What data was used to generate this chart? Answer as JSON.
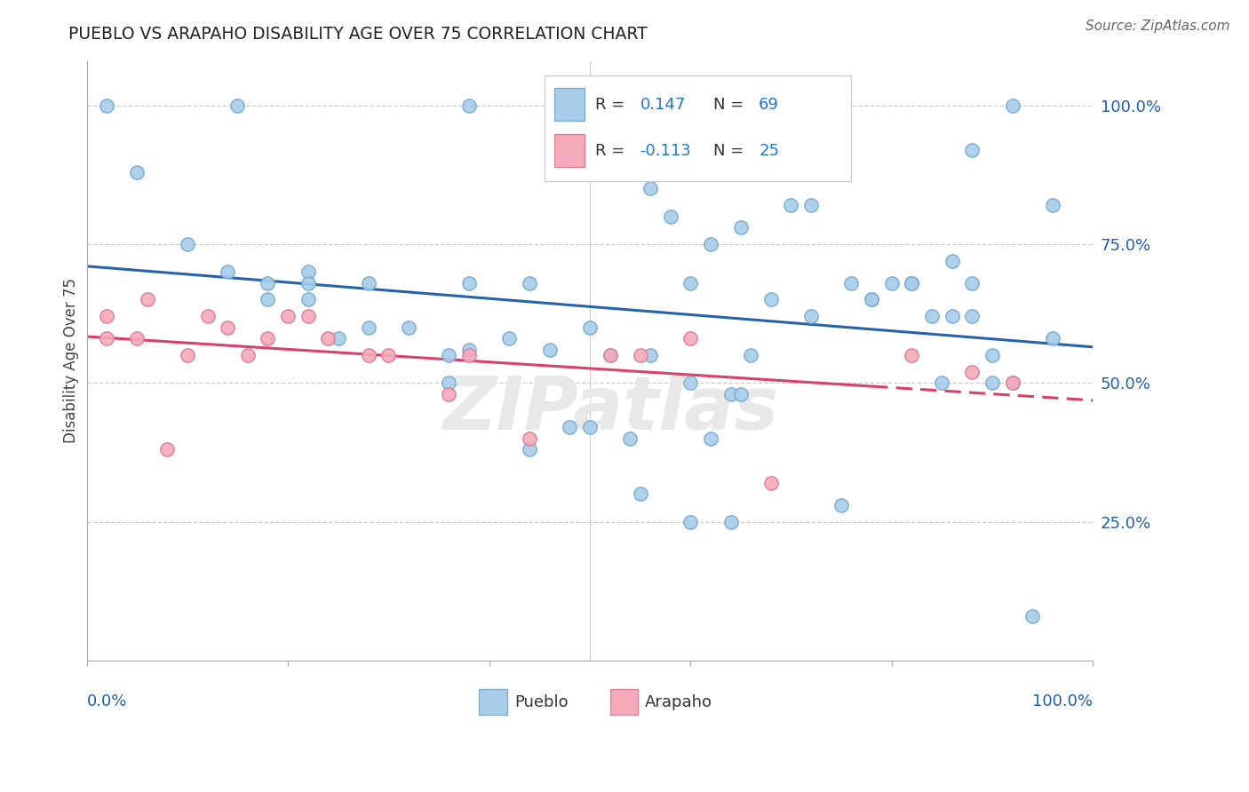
{
  "title": "PUEBLO VS ARAPAHO DISABILITY AGE OVER 75 CORRELATION CHART",
  "source": "Source: ZipAtlas.com",
  "ylabel": "Disability Age Over 75",
  "xlim": [
    0.0,
    1.0
  ],
  "ylim": [
    0.0,
    1.08
  ],
  "ytick_labels": [
    "25.0%",
    "50.0%",
    "75.0%",
    "100.0%"
  ],
  "ytick_values": [
    0.25,
    0.5,
    0.75,
    1.0
  ],
  "pueblo_color": "#A8CCEA",
  "pueblo_edge": "#7AAFD4",
  "arapaho_color": "#F4AABB",
  "arapaho_edge": "#E08098",
  "trend_pueblo_color": "#2563AD",
  "trend_arapaho_color": "#D9406A",
  "watermark_color": "#E0E0E0",
  "legend_R_pueblo": "0.147",
  "legend_N_pueblo": "69",
  "legend_R_arapaho": "-0.113",
  "legend_N_arapaho": "25",
  "pueblo_x": [
    0.02,
    0.15,
    0.05,
    0.22,
    0.22,
    0.38,
    0.44,
    0.47,
    0.38,
    0.42,
    0.56,
    0.58,
    0.62,
    0.7,
    0.72,
    0.76,
    0.82,
    0.82,
    0.88,
    0.92,
    0.96,
    0.1,
    0.14,
    0.18,
    0.18,
    0.22,
    0.25,
    0.28,
    0.28,
    0.32,
    0.36,
    0.36,
    0.38,
    0.46,
    0.6,
    0.65,
    0.66,
    0.72,
    0.78,
    0.8,
    0.84,
    0.86,
    0.88,
    0.56,
    0.64,
    0.55,
    0.6,
    0.64,
    0.75,
    0.78,
    0.85,
    0.9,
    0.9,
    0.96,
    0.5,
    0.54,
    0.62,
    0.68,
    0.5,
    0.52,
    0.6,
    0.65,
    0.82,
    0.86,
    0.88,
    0.92,
    0.94,
    0.48,
    0.44
  ],
  "pueblo_y": [
    1.0,
    1.0,
    0.88,
    0.7,
    0.68,
    0.68,
    0.68,
    1.0,
    1.0,
    0.58,
    0.85,
    0.8,
    0.75,
    0.82,
    0.82,
    0.68,
    0.68,
    0.68,
    0.92,
    1.0,
    0.82,
    0.75,
    0.7,
    0.68,
    0.65,
    0.65,
    0.58,
    0.68,
    0.6,
    0.6,
    0.55,
    0.5,
    0.56,
    0.56,
    0.68,
    0.78,
    0.55,
    0.62,
    0.65,
    0.68,
    0.62,
    0.72,
    0.68,
    0.55,
    0.48,
    0.3,
    0.25,
    0.25,
    0.28,
    0.65,
    0.5,
    0.5,
    0.55,
    0.58,
    0.42,
    0.4,
    0.4,
    0.65,
    0.6,
    0.55,
    0.5,
    0.48,
    0.68,
    0.62,
    0.62,
    0.5,
    0.08,
    0.42,
    0.38
  ],
  "arapaho_x": [
    0.02,
    0.02,
    0.05,
    0.06,
    0.08,
    0.1,
    0.12,
    0.14,
    0.16,
    0.18,
    0.2,
    0.22,
    0.24,
    0.28,
    0.3,
    0.36,
    0.38,
    0.44,
    0.52,
    0.55,
    0.6,
    0.68,
    0.82,
    0.88,
    0.92
  ],
  "arapaho_y": [
    0.62,
    0.58,
    0.58,
    0.65,
    0.38,
    0.55,
    0.62,
    0.6,
    0.55,
    0.58,
    0.62,
    0.62,
    0.58,
    0.55,
    0.55,
    0.48,
    0.55,
    0.4,
    0.55,
    0.55,
    0.58,
    0.32,
    0.55,
    0.52,
    0.5
  ]
}
